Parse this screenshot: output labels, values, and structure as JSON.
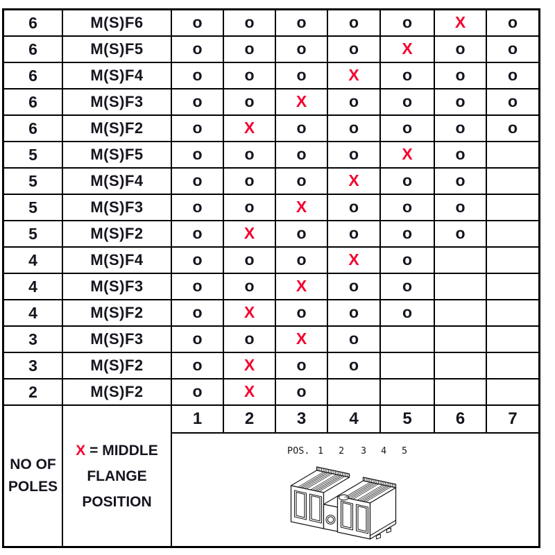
{
  "table": {
    "rows": [
      {
        "poles": "6",
        "variant": "M(S)F6",
        "marks": [
          "o",
          "o",
          "o",
          "o",
          "o",
          "X",
          "o"
        ]
      },
      {
        "poles": "6",
        "variant": "M(S)F5",
        "marks": [
          "o",
          "o",
          "o",
          "o",
          "X",
          "o",
          "o"
        ]
      },
      {
        "poles": "6",
        "variant": "M(S)F4",
        "marks": [
          "o",
          "o",
          "o",
          "X",
          "o",
          "o",
          "o"
        ]
      },
      {
        "poles": "6",
        "variant": "M(S)F3",
        "marks": [
          "o",
          "o",
          "X",
          "o",
          "o",
          "o",
          "o"
        ]
      },
      {
        "poles": "6",
        "variant": "M(S)F2",
        "marks": [
          "o",
          "X",
          "o",
          "o",
          "o",
          "o",
          "o"
        ]
      },
      {
        "poles": "5",
        "variant": "M(S)F5",
        "marks": [
          "o",
          "o",
          "o",
          "o",
          "X",
          "o",
          ""
        ]
      },
      {
        "poles": "5",
        "variant": "M(S)F4",
        "marks": [
          "o",
          "o",
          "o",
          "X",
          "o",
          "o",
          ""
        ]
      },
      {
        "poles": "5",
        "variant": "M(S)F3",
        "marks": [
          "o",
          "o",
          "X",
          "o",
          "o",
          "o",
          ""
        ]
      },
      {
        "poles": "5",
        "variant": "M(S)F2",
        "marks": [
          "o",
          "X",
          "o",
          "o",
          "o",
          "o",
          ""
        ]
      },
      {
        "poles": "4",
        "variant": "M(S)F4",
        "marks": [
          "o",
          "o",
          "o",
          "X",
          "o",
          "",
          ""
        ]
      },
      {
        "poles": "4",
        "variant": "M(S)F3",
        "marks": [
          "o",
          "o",
          "X",
          "o",
          "o",
          "",
          ""
        ]
      },
      {
        "poles": "4",
        "variant": "M(S)F2",
        "marks": [
          "o",
          "X",
          "o",
          "o",
          "o",
          "",
          ""
        ]
      },
      {
        "poles": "3",
        "variant": "M(S)F3",
        "marks": [
          "o",
          "o",
          "X",
          "o",
          "",
          "",
          ""
        ]
      },
      {
        "poles": "3",
        "variant": "M(S)F2",
        "marks": [
          "o",
          "X",
          "o",
          "o",
          "",
          "",
          ""
        ]
      },
      {
        "poles": "2",
        "variant": "M(S)F2",
        "marks": [
          "o",
          "X",
          "o",
          "",
          "",
          "",
          ""
        ]
      }
    ],
    "position_headers": [
      "1",
      "2",
      "3",
      "4",
      "5",
      "6",
      "7"
    ]
  },
  "legend": {
    "poles_lines": [
      "NO OF",
      "POLES"
    ],
    "x_symbol": "X",
    "x_line1_rest": " = MIDDLE",
    "x_line2": "FLANGE",
    "x_line3": "POSITION"
  },
  "diagram": {
    "pos_label": "POS.",
    "pos_numbers": [
      "1",
      "2",
      "3",
      "4",
      "5"
    ]
  },
  "colors": {
    "x_mark": "#f5002f",
    "ink": "#15151f",
    "border": "#000000"
  }
}
